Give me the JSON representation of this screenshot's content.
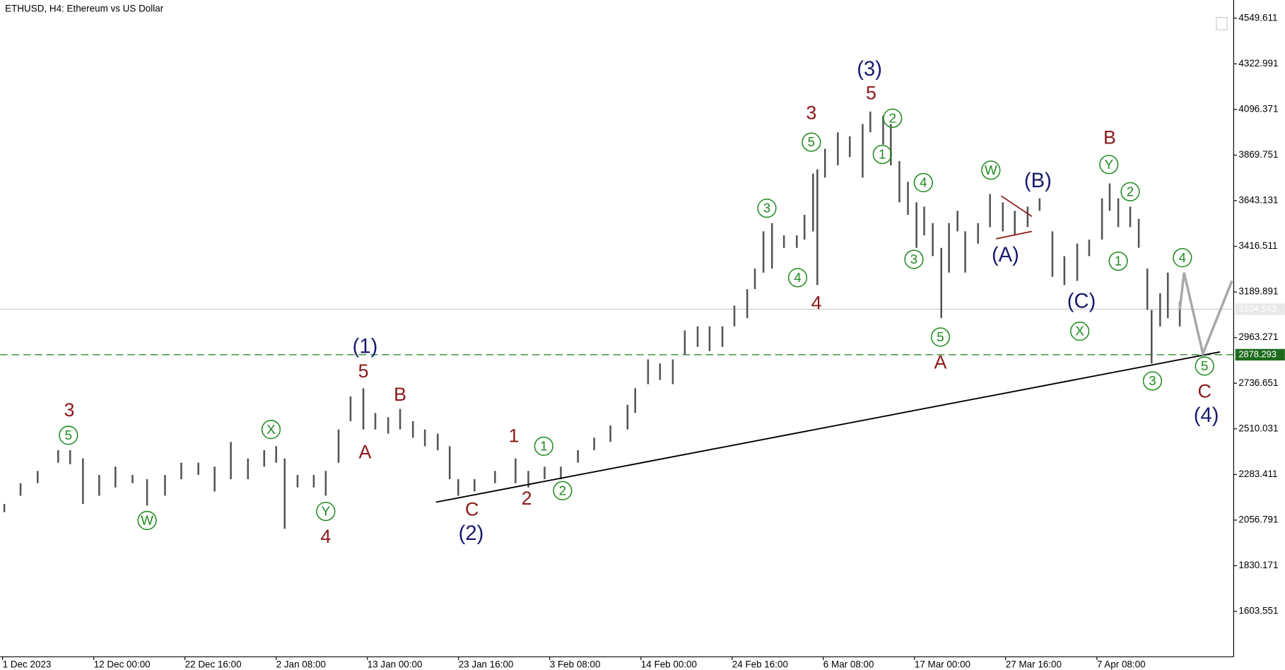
{
  "chart_data": {
    "type": "ohlc",
    "title": "ETHUSD, H4:  Ethereum vs US Dollar",
    "xlim": [
      0,
      144
    ],
    "ylim": [
      1378,
      4640
    ],
    "xticks": [
      {
        "value": 0,
        "label": "1 Dec 2023"
      },
      {
        "value": 10.67,
        "label": "12 Dec 00:00"
      },
      {
        "value": 21.33,
        "label": "22 Dec 16:00"
      },
      {
        "value": 32,
        "label": "2 Jan 08:00"
      },
      {
        "value": 42.67,
        "label": "13 Jan 00:00"
      },
      {
        "value": 53.33,
        "label": "23 Jan 16:00"
      },
      {
        "value": 64,
        "label": "3 Feb 08:00"
      },
      {
        "value": 74.67,
        "label": "14 Feb 00:00"
      },
      {
        "value": 85.33,
        "label": "24 Feb 16:00"
      },
      {
        "value": 96,
        "label": "6 Mar 08:00"
      },
      {
        "value": 106.67,
        "label": "17 Mar 00:00"
      },
      {
        "value": 117.33,
        "label": "27 Mar 16:00"
      },
      {
        "value": 128,
        "label": "7 Apr 08:00"
      }
    ],
    "yticks": [
      4549.611,
      4322.991,
      4096.371,
      3869.751,
      3643.131,
      3416.511,
      3189.891,
      2963.271,
      2736.651,
      2510.031,
      2283.411,
      2056.791,
      1830.171,
      1603.551
    ],
    "color": "#555555",
    "bars": {
      "x": [
        0.2,
        2.1,
        4.1,
        6.5,
        7.9,
        9.4,
        11.3,
        13.2,
        15.2,
        16.9,
        19.0,
        20.9,
        22.9,
        24.8,
        26.7,
        28.7,
        30.6,
        32.0,
        33.0,
        34.5,
        36.4,
        37.8,
        39.3,
        40.7,
        42.2,
        43.6,
        45.1,
        46.5,
        48.0,
        49.4,
        50.9,
        52.3,
        53.3,
        55.2,
        57.6,
        60.0,
        61.5,
        63.4,
        65.3,
        67.3,
        69.2,
        71.1,
        73.1,
        74.0,
        75.5,
        76.9,
        78.4,
        79.8,
        81.3,
        82.7,
        84.2,
        85.6,
        87.1,
        88.0,
        89.0,
        90.0,
        91.4,
        92.9,
        93.8,
        94.8,
        95.3,
        96.2,
        97.7,
        99.1,
        100.6,
        101.5,
        103.0,
        103.9,
        104.9,
        105.9,
        106.9,
        107.8,
        108.8,
        109.8,
        110.7,
        111.7,
        112.6,
        114.1,
        115.5,
        117.0,
        118.4,
        119.9,
        121.3,
        122.8,
        124.2,
        125.7,
        127.1,
        128.6,
        129.5,
        130.5,
        131.9,
        132.9,
        133.9,
        134.4,
        135.4,
        136.3,
        137.7
      ],
      "low": [
        2096,
        2178,
        2240,
        2342,
        2334,
        2137,
        2178,
        2219,
        2240,
        2129,
        2178,
        2260,
        2281,
        2199,
        2260,
        2260,
        2322,
        2342,
        2014,
        2219,
        2219,
        2178,
        2342,
        2548,
        2507,
        2507,
        2486,
        2507,
        2466,
        2424,
        2404,
        2260,
        2178,
        2199,
        2240,
        2240,
        2219,
        2260,
        2260,
        2342,
        2404,
        2445,
        2507,
        2589,
        2732,
        2753,
        2732,
        2876,
        2917,
        2896,
        2917,
        3019,
        3060,
        3204,
        3286,
        3306,
        3409,
        3409,
        3450,
        3491,
        3224,
        3758,
        3819,
        3860,
        3758,
        3983,
        3922,
        3819,
        3635,
        3573,
        3409,
        3471,
        3368,
        3060,
        3286,
        3491,
        3286,
        3430,
        3512,
        3491,
        3471,
        3512,
        3593,
        3265,
        3224,
        3245,
        3368,
        3450,
        3593,
        3512,
        3512,
        3409,
        3101,
        2835,
        3019,
        3060,
        3019
      ],
      "high": [
        2137,
        2240,
        2301,
        2404,
        2404,
        2363,
        2281,
        2322,
        2281,
        2260,
        2281,
        2342,
        2342,
        2322,
        2445,
        2363,
        2404,
        2424,
        2363,
        2281,
        2281,
        2301,
        2507,
        2671,
        2712,
        2589,
        2568,
        2609,
        2548,
        2507,
        2486,
        2424,
        2260,
        2260,
        2301,
        2363,
        2301,
        2322,
        2322,
        2404,
        2466,
        2527,
        2630,
        2712,
        2855,
        2835,
        2855,
        2999,
        3019,
        3019,
        3019,
        3122,
        3204,
        3306,
        3491,
        3532,
        3471,
        3471,
        3573,
        3778,
        3799,
        3901,
        3983,
        3963,
        4024,
        4086,
        4065,
        4024,
        3840,
        3737,
        3635,
        3614,
        3532,
        3409,
        3532,
        3593,
        3491,
        3532,
        3676,
        3635,
        3593,
        3614,
        3655,
        3491,
        3368,
        3430,
        3450,
        3655,
        3729,
        3655,
        3614,
        3553,
        3306,
        3101,
        3183,
        3286,
        3142
      ]
    },
    "levels": [
      {
        "value": 3104.543,
        "color": "#c8c8c8",
        "label_bg": "#e8e8e8",
        "label_color": "#ffffff",
        "style": "solid"
      },
      {
        "value": 2878.293,
        "color": "#1e7a1e",
        "label_bg": "#1e6b1e",
        "label_color": "#ffffff",
        "style": "dashed"
      }
    ],
    "lines": [
      {
        "x": [
          50.7,
          142.4
        ],
        "y": [
          2146,
          2892
        ],
        "color": "#000000",
        "width": 1.6
      },
      {
        "x": [
          137.7,
          138.2,
          140.4,
          143.8
        ],
        "y": [
          3101,
          3286,
          2884,
          3245
        ],
        "color": "#a8a8a8",
        "width": 3
      },
      {
        "x": [
          116.8,
          120.4
        ],
        "y": [
          3667,
          3565
        ],
        "color": "#8b1a1a",
        "width": 1.5
      },
      {
        "x": [
          116.2,
          120.4
        ],
        "y": [
          3454,
          3491
        ],
        "color": "#8b1a1a",
        "width": 1.5
      }
    ],
    "annotations": [
      {
        "text": "3",
        "color": "#8b1a1a",
        "x": 7.8,
        "y": 2601,
        "circled": false
      },
      {
        "text": "5",
        "color": "#1e8a1e",
        "x": 7.7,
        "y": 2478,
        "circled": true
      },
      {
        "text": "W",
        "color": "#1e8a1e",
        "x": 16.9,
        "y": 2055,
        "circled": true
      },
      {
        "text": "X",
        "color": "#1e8a1e",
        "x": 31.4,
        "y": 2507,
        "circled": true
      },
      {
        "text": "Y",
        "color": "#1e8a1e",
        "x": 37.8,
        "y": 2100,
        "circled": true
      },
      {
        "text": "4",
        "color": "#8b1a1a",
        "x": 37.8,
        "y": 1973,
        "circled": false
      },
      {
        "text": "(1)",
        "color": "#1a1a6e",
        "x": 42.4,
        "y": 2917,
        "circled": false
      },
      {
        "text": "5",
        "color": "#8b1a1a",
        "x": 42.2,
        "y": 2794,
        "circled": false
      },
      {
        "text": "A",
        "color": "#8b1a1a",
        "x": 42.4,
        "y": 2392,
        "circled": false
      },
      {
        "text": "B",
        "color": "#8b1a1a",
        "x": 46.5,
        "y": 2679,
        "circled": false
      },
      {
        "text": "C",
        "color": "#8b1a1a",
        "x": 54.9,
        "y": 2109,
        "circled": false
      },
      {
        "text": "(2)",
        "color": "#1a1a6e",
        "x": 54.8,
        "y": 1990,
        "circled": false
      },
      {
        "text": "1",
        "color": "#8b1a1a",
        "x": 59.8,
        "y": 2474,
        "circled": false
      },
      {
        "text": "2",
        "color": "#8b1a1a",
        "x": 61.3,
        "y": 2162,
        "circled": false
      },
      {
        "text": "1",
        "color": "#1e8a1e",
        "x": 63.3,
        "y": 2424,
        "circled": true
      },
      {
        "text": "2",
        "color": "#1e8a1e",
        "x": 65.5,
        "y": 2203,
        "circled": true
      },
      {
        "text": "3",
        "color": "#1e8a1e",
        "x": 89.4,
        "y": 3606,
        "circled": true
      },
      {
        "text": "4",
        "color": "#1e8a1e",
        "x": 93.0,
        "y": 3261,
        "circled": true
      },
      {
        "text": "4",
        "color": "#8b1a1a",
        "x": 95.2,
        "y": 3134,
        "circled": false
      },
      {
        "text": "3",
        "color": "#8b1a1a",
        "x": 94.6,
        "y": 4078,
        "circled": false
      },
      {
        "text": "5",
        "color": "#1e8a1e",
        "x": 94.6,
        "y": 3934,
        "circled": true
      },
      {
        "text": "(3)",
        "color": "#1a1a6e",
        "x": 101.4,
        "y": 4295,
        "circled": false
      },
      {
        "text": "5",
        "color": "#8b1a1a",
        "x": 101.6,
        "y": 4176,
        "circled": false
      },
      {
        "text": "2",
        "color": "#1e8a1e",
        "x": 104.1,
        "y": 4053,
        "circled": true
      },
      {
        "text": "1",
        "color": "#1e8a1e",
        "x": 102.9,
        "y": 3873,
        "circled": true
      },
      {
        "text": "4",
        "color": "#1e8a1e",
        "x": 107.7,
        "y": 3733,
        "circled": true
      },
      {
        "text": "3",
        "color": "#1e8a1e",
        "x": 106.6,
        "y": 3352,
        "circled": true
      },
      {
        "text": "5",
        "color": "#1e8a1e",
        "x": 109.7,
        "y": 2966,
        "circled": true
      },
      {
        "text": "A",
        "color": "#8b1a1a",
        "x": 109.7,
        "y": 2839,
        "circled": false
      },
      {
        "text": "W",
        "color": "#1e8a1e",
        "x": 115.6,
        "y": 3795,
        "circled": true
      },
      {
        "text": "(B)",
        "color": "#1a1a6e",
        "x": 121.1,
        "y": 3741,
        "circled": false
      },
      {
        "text": "(A)",
        "color": "#1a1a6e",
        "x": 117.3,
        "y": 3372,
        "circled": false
      },
      {
        "text": "(C)",
        "color": "#1a1a6e",
        "x": 126.2,
        "y": 3142,
        "circled": false
      },
      {
        "text": "X",
        "color": "#1e8a1e",
        "x": 126.0,
        "y": 2995,
        "circled": true
      },
      {
        "text": "B",
        "color": "#8b1a1a",
        "x": 129.5,
        "y": 3955,
        "circled": false
      },
      {
        "text": "Y",
        "color": "#1e8a1e",
        "x": 129.4,
        "y": 3823,
        "circled": true
      },
      {
        "text": "2",
        "color": "#1e8a1e",
        "x": 131.9,
        "y": 3688,
        "circled": true
      },
      {
        "text": "1",
        "color": "#1e8a1e",
        "x": 130.5,
        "y": 3343,
        "circled": true
      },
      {
        "text": "4",
        "color": "#1e8a1e",
        "x": 138.0,
        "y": 3360,
        "circled": true
      },
      {
        "text": "3",
        "color": "#1e8a1e",
        "x": 134.5,
        "y": 2748,
        "circled": true
      },
      {
        "text": "5",
        "color": "#1e8a1e",
        "x": 140.6,
        "y": 2822,
        "circled": true
      },
      {
        "text": "C",
        "color": "#8b1a1a",
        "x": 140.6,
        "y": 2695,
        "circled": false
      },
      {
        "text": "(4)",
        "color": "#1a1a6e",
        "x": 140.8,
        "y": 2576,
        "circled": false
      }
    ]
  }
}
